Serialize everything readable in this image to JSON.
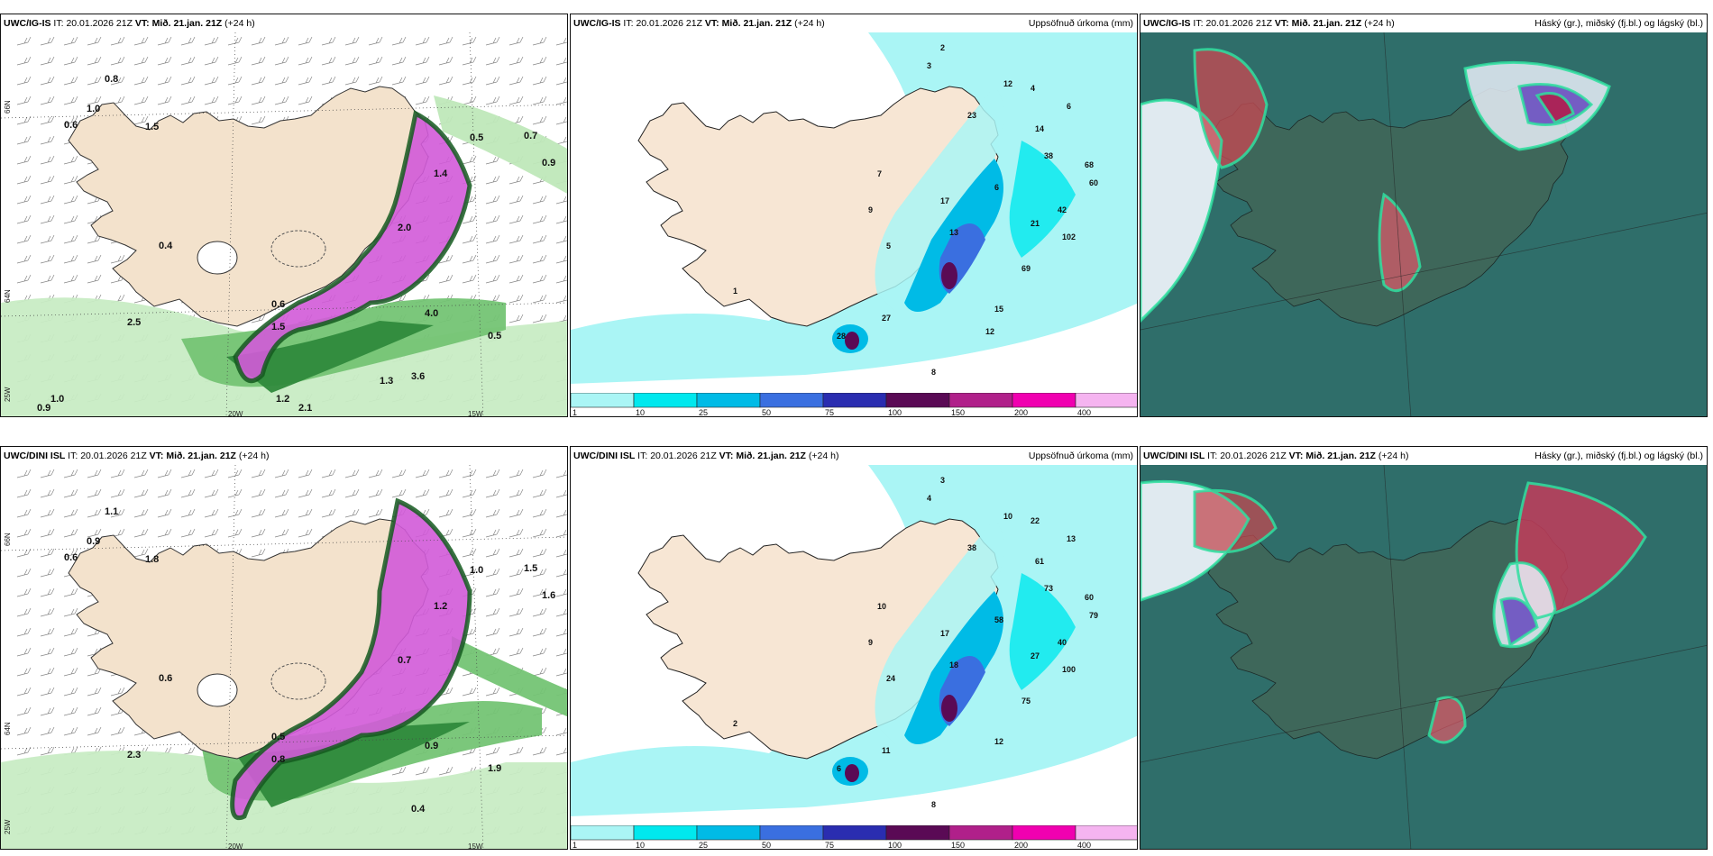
{
  "panels": [
    {
      "id": "p1",
      "model": "UWC/IG-IS",
      "it_label": "IT:",
      "it_value": "20.01.2026 21Z",
      "vt_label": "VT:",
      "vt_value": "Mið. 21.jan. 21Z",
      "lead": "(+24 h)",
      "right": ""
    },
    {
      "id": "p2",
      "model": "UWC/IG-IS",
      "it_label": "IT:",
      "it_value": "20.01.2026 21Z",
      "vt_label": "VT:",
      "vt_value": "Mið. 21.jan. 21Z",
      "lead": "(+24 h)",
      "right": "Uppsöfnuð úrkoma (mm)"
    },
    {
      "id": "p3",
      "model": "UWC/IG-IS",
      "it_label": "IT:",
      "it_value": "20.01.2026 21Z",
      "vt_label": "VT:",
      "vt_value": "Mið. 21.jan. 21Z",
      "lead": "(+24 h)",
      "right": "Háský (gr.), miðský (fj.bl.) og lágský (bl.)"
    },
    {
      "id": "p4",
      "model": "UWC/DINI ISL",
      "it_label": "IT:",
      "it_value": "20.01.2026 21Z",
      "vt_label": "VT:",
      "vt_value": "Mið. 21.jan. 21Z",
      "lead": "(+24 h)",
      "right": ""
    },
    {
      "id": "p5",
      "model": "UWC/DINI ISL",
      "it_label": "IT:",
      "it_value": "20.01.2026 21Z",
      "vt_label": "VT:",
      "vt_value": "Mið. 21.jan. 21Z",
      "lead": "(+24 h)",
      "right": "Uppsöfnuð úrkoma (mm)"
    },
    {
      "id": "p6",
      "model": "UWC/DINI ISL",
      "it_label": "IT:",
      "it_value": "20.01.2026 21Z",
      "vt_label": "VT:",
      "vt_value": "Mið. 21.jan. 21Z",
      "lead": "(+24 h)",
      "right": "Hásky (gr.), miðský (fj.bl.) og lágský (bl.)"
    }
  ],
  "grid_labels": {
    "lat_top": "66N",
    "lat_mid": "64N",
    "lat_low": "25W",
    "lon_a": "20W",
    "lon_b": "15W"
  },
  "colorbar": {
    "ticks": [
      "1",
      "10",
      "25",
      "50",
      "75",
      "100",
      "150",
      "200",
      "400"
    ],
    "colors": [
      "#aaf5f5",
      "#00e8ee",
      "#00bbe6",
      "#3a6fe0",
      "#2a2db0",
      "#5a0a55",
      "#b0208a",
      "#f000b0",
      "#f5b4f0"
    ]
  },
  "precip_labels_top": [
    "2",
    "3",
    "12",
    "4",
    "6",
    "23",
    "14",
    "38",
    "68",
    "60",
    "42",
    "102",
    "69",
    "15",
    "21",
    "13",
    "17",
    "7",
    "9",
    "5",
    "6",
    "27",
    "28",
    "1",
    "8",
    "12"
  ],
  "precip_labels_bottom": [
    "3",
    "4",
    "10",
    "22",
    "13",
    "38",
    "61",
    "73",
    "60",
    "79",
    "40",
    "100",
    "75",
    "12",
    "27",
    "18",
    "17",
    "10",
    "9",
    "24",
    "58",
    "11",
    "6",
    "2",
    "8"
  ],
  "snow_labels_top": [
    "0.8",
    "1.0",
    "0.6",
    "1.5",
    "0.5",
    "0.7",
    "0.9",
    "1.4",
    "2.0",
    "1.5",
    "2.5",
    "0.6",
    "0.4",
    "4.0",
    "0.5",
    "3.6",
    "1.3",
    "1.2",
    "0.9",
    "1.0",
    "2.1"
  ],
  "snow_labels_bottom": [
    "1.1",
    "0.9",
    "0.6",
    "1.8",
    "1.0",
    "1.5",
    "1.6",
    "1.2",
    "0.7",
    "0.8",
    "2.3",
    "0.5",
    "0.6",
    "0.9",
    "1.9",
    "0.4"
  ]
}
